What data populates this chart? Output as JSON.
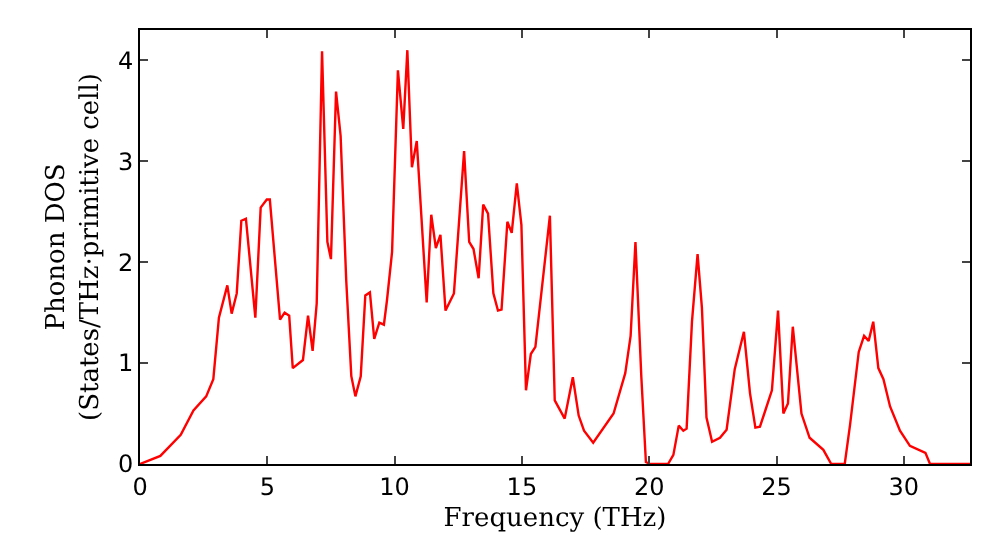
{
  "chart_data": {
    "type": "line",
    "xlabel": "Frequency (THz)",
    "ylabel": "Phonon DOS\n(States/THz·primitive cell)",
    "xlim": [
      0,
      32.6
    ],
    "ylim": [
      0,
      4.3
    ],
    "xticks": [
      0,
      5,
      10,
      15,
      20,
      25,
      30
    ],
    "yticks": [
      0,
      1,
      2,
      3,
      4
    ],
    "marker": "none",
    "line_style": "solid",
    "series": [
      {
        "color": "#ff0000",
        "x": [
          0,
          0.8,
          1.6,
          2.1,
          2.6,
          2.88,
          3.1,
          3.43,
          3.6,
          3.8,
          3.98,
          4.16,
          4.53,
          4.74,
          4.98,
          5.1,
          5.5,
          5.68,
          5.86,
          6.0,
          6.4,
          6.6,
          6.78,
          6.94,
          7.15,
          7.36,
          7.5,
          7.7,
          7.88,
          8.1,
          8.3,
          8.46,
          8.67,
          8.85,
          9.03,
          9.2,
          9.4,
          9.58,
          9.7,
          9.9,
          10.13,
          10.34,
          10.5,
          10.68,
          10.87,
          11.26,
          11.44,
          11.62,
          11.8,
          12.0,
          12.33,
          12.73,
          12.93,
          13.1,
          13.3,
          13.48,
          13.67,
          13.88,
          14.06,
          14.2,
          14.43,
          14.6,
          14.8,
          14.98,
          15.16,
          15.35,
          15.53,
          16.1,
          16.29,
          16.68,
          17.0,
          17.23,
          17.44,
          17.8,
          18.6,
          19.06,
          19.27,
          19.46,
          19.69,
          19.87,
          20.03,
          20.74,
          20.95,
          21.16,
          21.34,
          21.47,
          21.68,
          21.9,
          22.07,
          22.25,
          22.47,
          22.78,
          23.04,
          23.36,
          23.72,
          23.96,
          24.17,
          24.35,
          24.56,
          24.82,
          25.06,
          25.27,
          25.45,
          25.64,
          25.98,
          26.3,
          26.84,
          27.15,
          27.68,
          27.89,
          28.23,
          28.44,
          28.62,
          28.8,
          29.0,
          29.2,
          29.46,
          29.85,
          30.24,
          30.85,
          31.03,
          32.6
        ],
        "values": [
          0,
          0.08,
          0.29,
          0.53,
          0.67,
          0.84,
          1.45,
          1.77,
          1.49,
          1.69,
          2.41,
          2.43,
          1.45,
          2.54,
          2.62,
          2.62,
          1.43,
          1.5,
          1.47,
          0.95,
          1.03,
          1.47,
          1.12,
          1.59,
          4.09,
          2.2,
          2.03,
          3.69,
          3.25,
          1.82,
          0.87,
          0.67,
          0.87,
          1.67,
          1.7,
          1.24,
          1.4,
          1.38,
          1.62,
          2.1,
          3.9,
          3.32,
          4.1,
          2.94,
          3.2,
          1.6,
          2.47,
          2.14,
          2.27,
          1.52,
          1.69,
          3.1,
          2.2,
          2.13,
          1.84,
          2.57,
          2.48,
          1.69,
          1.52,
          1.53,
          2.4,
          2.29,
          2.78,
          2.37,
          0.73,
          1.09,
          1.16,
          2.46,
          0.63,
          0.45,
          0.86,
          0.48,
          0.33,
          0.21,
          0.5,
          0.9,
          1.27,
          2.2,
          0.87,
          0.02,
          0,
          0,
          0.09,
          0.38,
          0.33,
          0.35,
          1.41,
          2.08,
          1.55,
          0.46,
          0.22,
          0.26,
          0.34,
          0.94,
          1.31,
          0.7,
          0.36,
          0.37,
          0.53,
          0.73,
          1.52,
          0.5,
          0.6,
          1.36,
          0.5,
          0.26,
          0.14,
          0,
          0,
          0.39,
          1.11,
          1.27,
          1.22,
          1.41,
          0.95,
          0.84,
          0.57,
          0.33,
          0.18,
          0.11,
          0,
          0
        ]
      }
    ]
  }
}
